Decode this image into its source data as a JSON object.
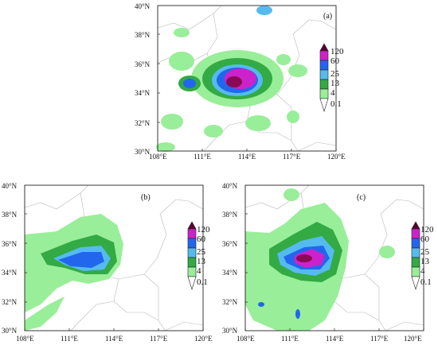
{
  "colorbar": {
    "labels": [
      "120",
      "60",
      "25",
      "13",
      "4",
      "0.1"
    ],
    "colors": [
      "#8a0a55",
      "#cc22cc",
      "#2266ee",
      "#55bbee",
      "#33aa44",
      "#99ee99"
    ]
  },
  "axes": {
    "y_top": [
      "30°N",
      "32°N",
      "34°N",
      "36°N",
      "38°N",
      "40°N"
    ],
    "x_top": [
      "108°E",
      "111°E",
      "114°E",
      "117°E",
      "120°E"
    ],
    "y_bottom": [
      "30°N",
      "32°N",
      "34°N",
      "36°N",
      "38°N",
      "40°N"
    ],
    "x_bottom": [
      "108°E",
      "111°E",
      "114°E",
      "117°E",
      "120°E"
    ]
  },
  "panels": [
    {
      "id": "a",
      "label": "(a)"
    },
    {
      "id": "b",
      "label": "(b)"
    },
    {
      "id": "c",
      "label": "(c)"
    }
  ]
}
